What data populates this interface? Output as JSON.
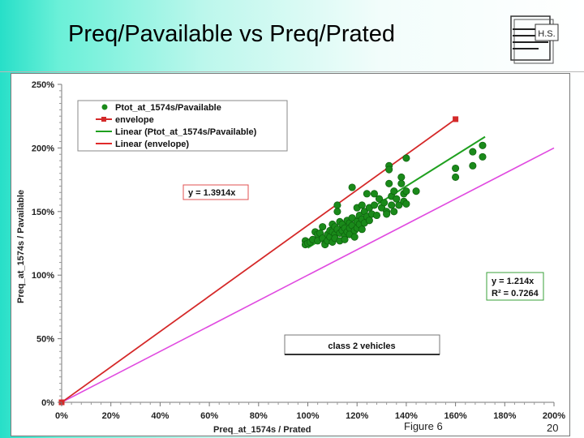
{
  "slide": {
    "title": "Preq/Pavailable vs Preq/Prated",
    "figure_label": "Figure 6",
    "page_number": "20",
    "logo_text": "H.S."
  },
  "colors": {
    "points": "#1a8a1a",
    "envelope": "#d42a2a",
    "linear_points": "#1fa01f",
    "linear_envelope": "#e02a2a",
    "reference": "#e04ae0"
  },
  "chart_data": {
    "type": "scatter",
    "xlabel": "Preq_at_1574s / Prated",
    "ylabel": "Preq_at_1574s / Pavailable",
    "xlim": [
      0,
      2.0
    ],
    "ylim": [
      0,
      2.5
    ],
    "x_ticks": [
      "0%",
      "20%",
      "40%",
      "60%",
      "80%",
      "100%",
      "120%",
      "140%",
      "160%",
      "180%",
      "200%"
    ],
    "y_ticks": [
      "0%",
      "50%",
      "100%",
      "150%",
      "200%",
      "250%"
    ],
    "grid": false,
    "legend_position": "top-left",
    "series": [
      {
        "name": "Ptot_at_1574s/Pavailable",
        "kind": "points",
        "points": [
          [
            0.99,
            1.27
          ],
          [
            0.99,
            1.24
          ],
          [
            1.0,
            1.25
          ],
          [
            1.01,
            1.26
          ],
          [
            1.02,
            1.28
          ],
          [
            1.03,
            1.34
          ],
          [
            1.04,
            1.32
          ],
          [
            1.04,
            1.27
          ],
          [
            1.05,
            1.33
          ],
          [
            1.06,
            1.38
          ],
          [
            1.06,
            1.29
          ],
          [
            1.07,
            1.25
          ],
          [
            1.07,
            1.24
          ],
          [
            1.08,
            1.32
          ],
          [
            1.08,
            1.27
          ],
          [
            1.09,
            1.35
          ],
          [
            1.09,
            1.3
          ],
          [
            1.1,
            1.4
          ],
          [
            1.1,
            1.34
          ],
          [
            1.1,
            1.26
          ],
          [
            1.11,
            1.38
          ],
          [
            1.11,
            1.32
          ],
          [
            1.11,
            1.29
          ],
          [
            1.12,
            1.55
          ],
          [
            1.12,
            1.5
          ],
          [
            1.12,
            1.36
          ],
          [
            1.13,
            1.42
          ],
          [
            1.13,
            1.33
          ],
          [
            1.13,
            1.27
          ],
          [
            1.14,
            1.4
          ],
          [
            1.14,
            1.35
          ],
          [
            1.15,
            1.37
          ],
          [
            1.15,
            1.31
          ],
          [
            1.15,
            1.28
          ],
          [
            1.16,
            1.43
          ],
          [
            1.16,
            1.34
          ],
          [
            1.17,
            1.41
          ],
          [
            1.17,
            1.37
          ],
          [
            1.17,
            1.32
          ],
          [
            1.18,
            1.69
          ],
          [
            1.18,
            1.45
          ],
          [
            1.18,
            1.39
          ],
          [
            1.19,
            1.35
          ],
          [
            1.19,
            1.3
          ],
          [
            1.2,
            1.53
          ],
          [
            1.2,
            1.42
          ],
          [
            1.2,
            1.37
          ],
          [
            1.21,
            1.47
          ],
          [
            1.21,
            1.4
          ],
          [
            1.22,
            1.55
          ],
          [
            1.22,
            1.44
          ],
          [
            1.22,
            1.36
          ],
          [
            1.23,
            1.5
          ],
          [
            1.23,
            1.41
          ],
          [
            1.24,
            1.64
          ],
          [
            1.24,
            1.46
          ],
          [
            1.25,
            1.53
          ],
          [
            1.25,
            1.43
          ],
          [
            1.26,
            1.48
          ],
          [
            1.27,
            1.64
          ],
          [
            1.27,
            1.55
          ],
          [
            1.28,
            1.47
          ],
          [
            1.29,
            1.6
          ],
          [
            1.3,
            1.53
          ],
          [
            1.31,
            1.57
          ],
          [
            1.32,
            1.5
          ],
          [
            1.32,
            1.48
          ],
          [
            1.33,
            1.86
          ],
          [
            1.33,
            1.83
          ],
          [
            1.33,
            1.72
          ],
          [
            1.34,
            1.62
          ],
          [
            1.34,
            1.55
          ],
          [
            1.35,
            1.66
          ],
          [
            1.35,
            1.5
          ],
          [
            1.36,
            1.6
          ],
          [
            1.37,
            1.55
          ],
          [
            1.38,
            1.77
          ],
          [
            1.38,
            1.72
          ],
          [
            1.39,
            1.64
          ],
          [
            1.39,
            1.58
          ],
          [
            1.4,
            1.92
          ],
          [
            1.4,
            1.66
          ],
          [
            1.4,
            1.56
          ],
          [
            1.44,
            1.66
          ],
          [
            1.6,
            1.84
          ],
          [
            1.6,
            1.77
          ],
          [
            1.67,
            1.97
          ],
          [
            1.67,
            1.86
          ],
          [
            1.71,
            2.02
          ],
          [
            1.71,
            1.93
          ]
        ]
      },
      {
        "name": "envelope",
        "kind": "line-markers",
        "points": [
          [
            0,
            0
          ],
          [
            1.6,
            2.2262
          ]
        ]
      },
      {
        "name": "Linear (Ptot_at_1574s/Pavailable)",
        "kind": "trendline",
        "points": [
          [
            1.0,
            1.214
          ],
          [
            1.72,
            2.088
          ]
        ]
      },
      {
        "name": "Linear (envelope)",
        "kind": "trendline",
        "points": [
          [
            0,
            0
          ],
          [
            1.6,
            2.2262
          ]
        ]
      },
      {
        "kind": "reference-line",
        "points": [
          [
            0,
            0
          ],
          [
            2.0,
            2.0
          ]
        ]
      }
    ],
    "annotations": {
      "envelope_equation": "y = 1.3914x",
      "points_equation": "y = 1.214x",
      "points_r2": "R² = 0.7264",
      "class_label": "class 2 vehicles"
    }
  }
}
